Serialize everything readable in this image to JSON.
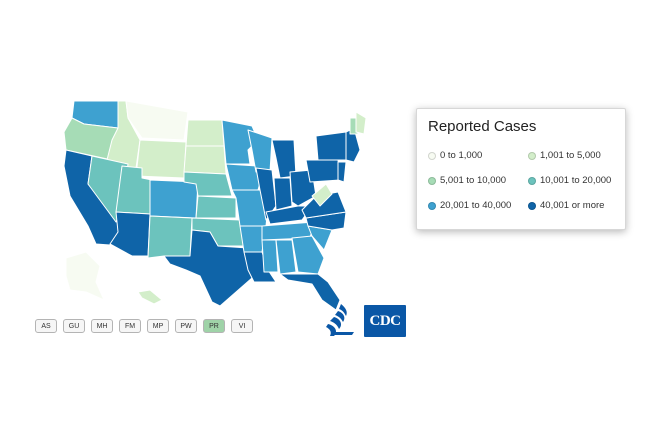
{
  "legend": {
    "title": "Reported Cases",
    "items": [
      {
        "label": "0 to 1,000",
        "color": "#f7fbf2"
      },
      {
        "label": "1,001 to 5,000",
        "color": "#d3eeca"
      },
      {
        "label": "5,001 to 10,000",
        "color": "#a6dcb6"
      },
      {
        "label": "10,001 to 20,000",
        "color": "#6cc3bd"
      },
      {
        "label": "20,001 to 40,000",
        "color": "#3ea1d0"
      },
      {
        "label": "40,001 or more",
        "color": "#0f64a8"
      }
    ]
  },
  "territories": [
    {
      "label": "AS",
      "selected": false
    },
    {
      "label": "GU",
      "selected": false
    },
    {
      "label": "MH",
      "selected": false
    },
    {
      "label": "FM",
      "selected": false
    },
    {
      "label": "MP",
      "selected": false
    },
    {
      "label": "PW",
      "selected": false
    },
    {
      "label": "PR",
      "selected": true
    },
    {
      "label": "VI",
      "selected": false
    }
  ],
  "colors": {
    "selected_territory": "#9fd3a8",
    "border": "#ffffff"
  },
  "logo": {
    "text": "CDC"
  }
}
